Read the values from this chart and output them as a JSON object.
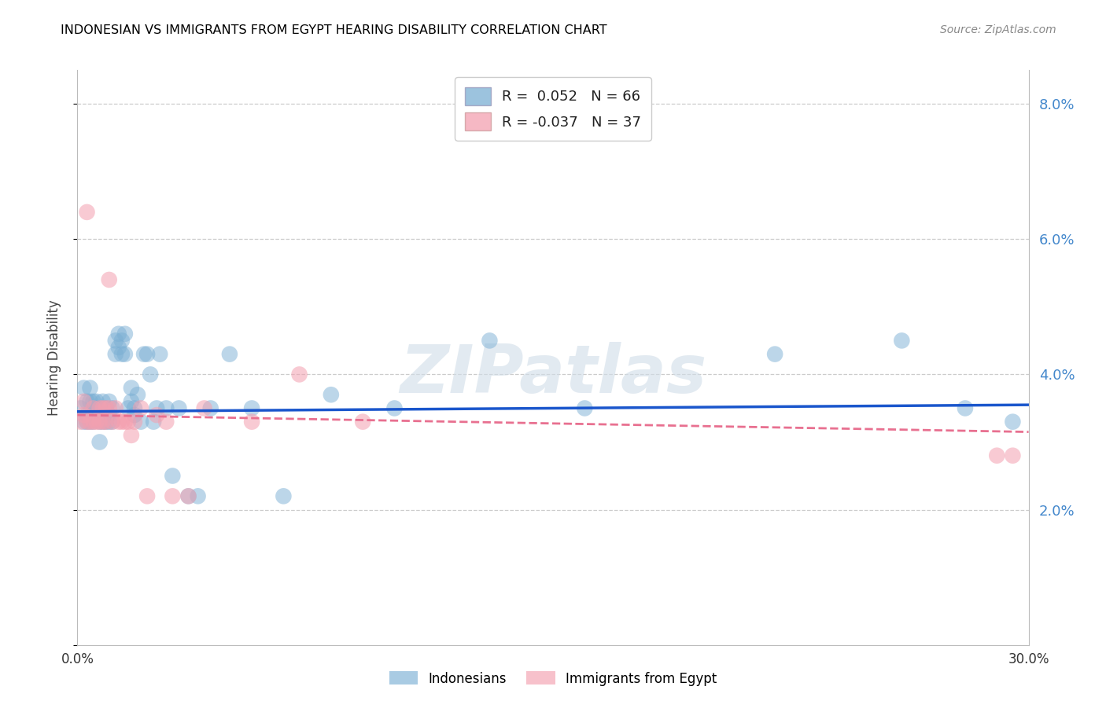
{
  "title": "INDONESIAN VS IMMIGRANTS FROM EGYPT HEARING DISABILITY CORRELATION CHART",
  "source": "Source: ZipAtlas.com",
  "ylabel": "Hearing Disability",
  "watermark": "ZIPatlas",
  "y_ticks": [
    0.0,
    0.02,
    0.04,
    0.06,
    0.08
  ],
  "y_tick_labels": [
    "",
    "2.0%",
    "4.0%",
    "6.0%",
    "8.0%"
  ],
  "x_min": 0.0,
  "x_max": 0.3,
  "y_min": 0.0,
  "y_max": 0.085,
  "legend_label1": "Indonesians",
  "legend_label2": "Immigrants from Egypt",
  "blue_color": "#7BAFD4",
  "pink_color": "#F4A0B0",
  "line_blue": "#1A56CC",
  "line_pink": "#E87090",
  "indonesian_x": [
    0.001,
    0.002,
    0.002,
    0.003,
    0.003,
    0.003,
    0.004,
    0.004,
    0.004,
    0.005,
    0.005,
    0.005,
    0.006,
    0.006,
    0.006,
    0.007,
    0.007,
    0.007,
    0.008,
    0.008,
    0.008,
    0.009,
    0.009,
    0.01,
    0.01,
    0.01,
    0.011,
    0.011,
    0.012,
    0.012,
    0.013,
    0.013,
    0.014,
    0.014,
    0.015,
    0.015,
    0.016,
    0.017,
    0.017,
    0.018,
    0.018,
    0.019,
    0.02,
    0.021,
    0.022,
    0.023,
    0.024,
    0.025,
    0.026,
    0.028,
    0.03,
    0.032,
    0.035,
    0.038,
    0.042,
    0.048,
    0.055,
    0.065,
    0.08,
    0.1,
    0.13,
    0.16,
    0.22,
    0.26,
    0.28,
    0.295
  ],
  "indonesian_y": [
    0.035,
    0.038,
    0.033,
    0.036,
    0.034,
    0.033,
    0.038,
    0.036,
    0.033,
    0.034,
    0.036,
    0.033,
    0.035,
    0.034,
    0.036,
    0.03,
    0.033,
    0.035,
    0.034,
    0.036,
    0.033,
    0.035,
    0.033,
    0.034,
    0.036,
    0.033,
    0.035,
    0.033,
    0.043,
    0.045,
    0.044,
    0.046,
    0.043,
    0.045,
    0.043,
    0.046,
    0.035,
    0.038,
    0.036,
    0.035,
    0.034,
    0.037,
    0.033,
    0.043,
    0.043,
    0.04,
    0.033,
    0.035,
    0.043,
    0.035,
    0.025,
    0.035,
    0.022,
    0.022,
    0.035,
    0.043,
    0.035,
    0.022,
    0.037,
    0.035,
    0.045,
    0.035,
    0.043,
    0.045,
    0.035,
    0.033
  ],
  "egypt_x": [
    0.001,
    0.002,
    0.002,
    0.003,
    0.003,
    0.004,
    0.005,
    0.005,
    0.006,
    0.007,
    0.007,
    0.008,
    0.008,
    0.009,
    0.009,
    0.01,
    0.01,
    0.011,
    0.012,
    0.013,
    0.014,
    0.015,
    0.016,
    0.017,
    0.018,
    0.02,
    0.022,
    0.025,
    0.028,
    0.03,
    0.035,
    0.04,
    0.055,
    0.07,
    0.09,
    0.29,
    0.295
  ],
  "egypt_y": [
    0.033,
    0.034,
    0.036,
    0.064,
    0.033,
    0.033,
    0.033,
    0.035,
    0.033,
    0.033,
    0.035,
    0.033,
    0.035,
    0.033,
    0.035,
    0.035,
    0.054,
    0.033,
    0.035,
    0.033,
    0.033,
    0.033,
    0.033,
    0.031,
    0.033,
    0.035,
    0.022,
    0.034,
    0.033,
    0.022,
    0.022,
    0.035,
    0.033,
    0.04,
    0.033,
    0.028,
    0.028
  ]
}
